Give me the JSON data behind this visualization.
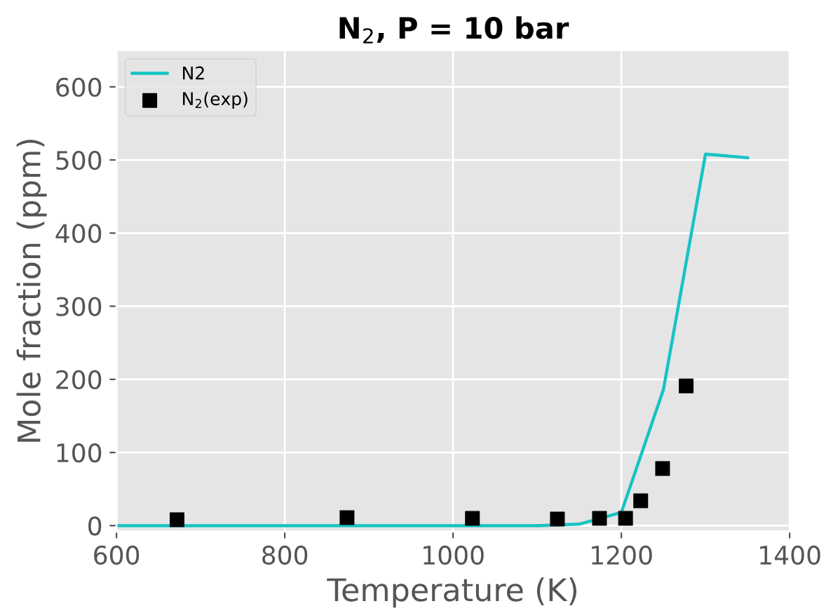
{
  "chart_data": {
    "type": "line",
    "title": "N$_{2}$, P = 10 bar",
    "xlabel": "Temperature (K)",
    "ylabel": "Mole fraction (ppm)",
    "series": [
      {
        "name": "N2",
        "color": "#17c3c3",
        "x": [
          600,
          700,
          800,
          900,
          1000,
          1100,
          1150,
          1200,
          1250,
          1300,
          1350
        ],
        "values": [
          0,
          0,
          0,
          0,
          0,
          0,
          2,
          18,
          186,
          508,
          503
        ],
        "marker": "none",
        "line_style": "solid"
      },
      {
        "name": "N$_{2}$(exp)",
        "type": "scatter",
        "color": "#000000",
        "x": [
          672,
          874,
          1023,
          1124,
          1174,
          1205,
          1223,
          1249,
          1277
        ],
        "values": [
          8,
          11,
          10,
          9,
          10,
          10,
          34,
          78,
          191
        ],
        "marker": "square"
      }
    ],
    "xlim": [
      600,
      1400
    ],
    "ylim": [
      -8,
      650
    ],
    "xticks": [
      600,
      800,
      1000,
      1200,
      1400
    ],
    "yticks": [
      0,
      100,
      200,
      300,
      400,
      500,
      600
    ],
    "grid": true,
    "legend": "top left"
  }
}
